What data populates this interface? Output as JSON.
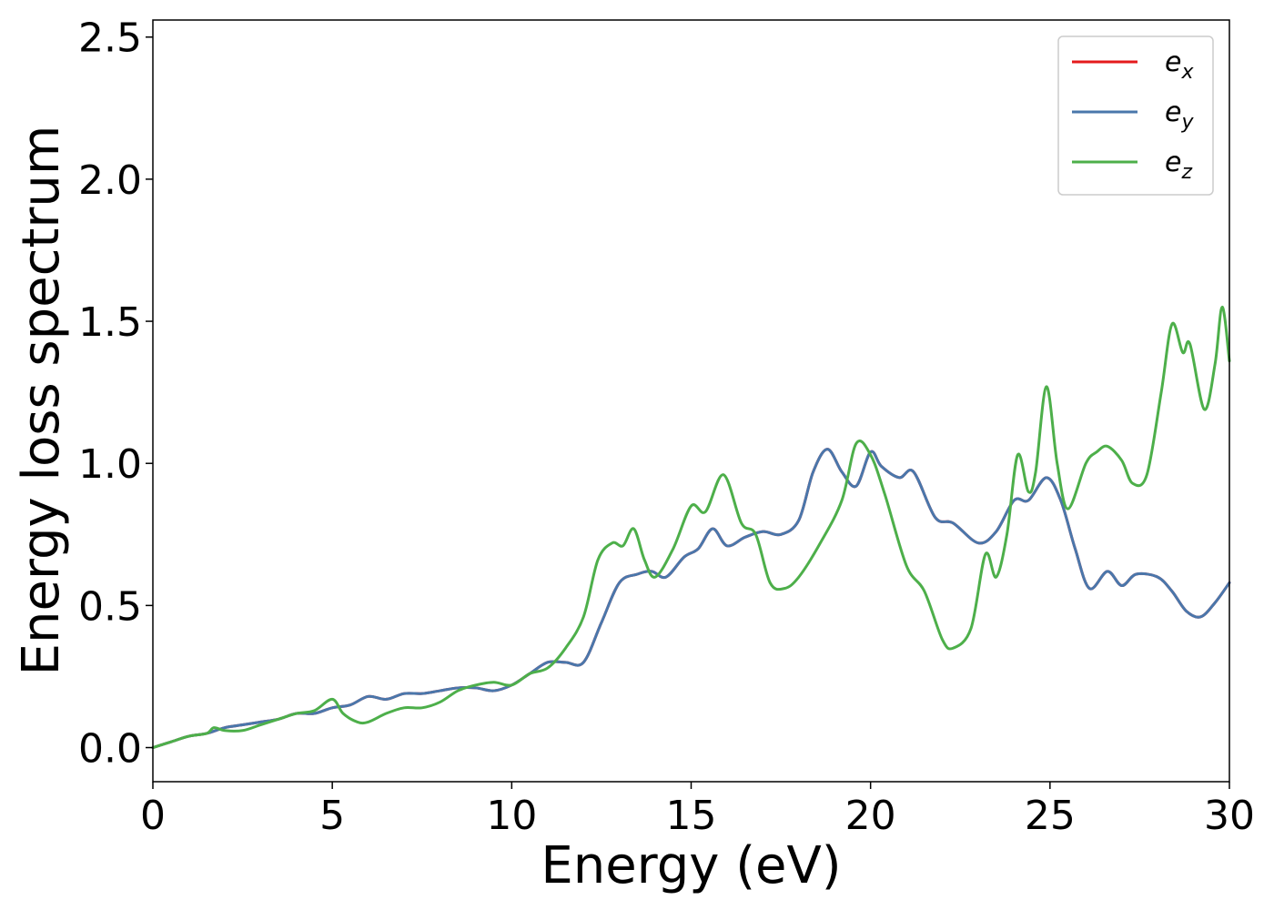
{
  "chart_data": {
    "type": "line",
    "title": "",
    "xlabel": "Energy (eV)",
    "ylabel": "Energy loss spectrum",
    "xlim": [
      0,
      30
    ],
    "ylim": [
      -0.12,
      2.56
    ],
    "xticks": [
      0,
      5,
      10,
      15,
      20,
      25,
      30
    ],
    "xtick_labels": [
      "0",
      "5",
      "10",
      "15",
      "20",
      "25",
      "30"
    ],
    "yticks": [
      0.0,
      0.5,
      1.0,
      1.5,
      2.0,
      2.5
    ],
    "ytick_labels": [
      "0.0",
      "0.5",
      "1.0",
      "1.5",
      "2.0",
      "2.5"
    ],
    "grid": false,
    "legend_position": "top-right",
    "colors": {
      "ex": "#e41a1c",
      "ey": "#4a77ab",
      "ez": "#4daf4a"
    },
    "series": [
      {
        "name": "e",
        "subscript": "x",
        "color": "#e41a1c",
        "x": [
          0,
          0.5,
          1,
          1.5,
          2,
          2.5,
          3,
          3.5,
          4,
          4.5,
          5,
          5.5,
          6,
          6.5,
          7,
          7.5,
          8,
          8.5,
          9,
          9.5,
          10,
          10.5,
          11,
          11.5,
          12,
          12.5,
          13,
          13.5,
          13.9,
          14.3,
          14.8,
          15.2,
          15.6,
          16,
          16.5,
          17,
          17.5,
          18,
          18.4,
          18.8,
          19.2,
          19.6,
          20,
          20.3,
          20.8,
          21.2,
          21.8,
          22.3,
          23,
          23.5,
          24,
          24.4,
          24.9,
          25.3,
          25.7,
          26.1,
          26.6,
          27,
          27.4,
          28,
          28.4,
          28.8,
          29.2,
          29.6,
          30
        ],
        "y": [
          0,
          0.02,
          0.04,
          0.05,
          0.07,
          0.08,
          0.09,
          0.1,
          0.12,
          0.12,
          0.14,
          0.15,
          0.18,
          0.17,
          0.19,
          0.19,
          0.2,
          0.21,
          0.21,
          0.2,
          0.22,
          0.26,
          0.3,
          0.3,
          0.3,
          0.44,
          0.58,
          0.61,
          0.62,
          0.6,
          0.67,
          0.7,
          0.77,
          0.71,
          0.74,
          0.76,
          0.75,
          0.8,
          0.97,
          1.05,
          0.97,
          0.92,
          1.04,
          0.99,
          0.95,
          0.97,
          0.81,
          0.79,
          0.72,
          0.76,
          0.87,
          0.87,
          0.95,
          0.87,
          0.7,
          0.56,
          0.62,
          0.57,
          0.61,
          0.6,
          0.55,
          0.48,
          0.46,
          0.51,
          0.58
        ]
      },
      {
        "name": "e",
        "subscript": "y",
        "color": "#4a77ab",
        "x": [
          0,
          0.5,
          1,
          1.5,
          2,
          2.5,
          3,
          3.5,
          4,
          4.5,
          5,
          5.5,
          6,
          6.5,
          7,
          7.5,
          8,
          8.5,
          9,
          9.5,
          10,
          10.5,
          11,
          11.5,
          12,
          12.5,
          13,
          13.5,
          13.9,
          14.3,
          14.8,
          15.2,
          15.6,
          16,
          16.5,
          17,
          17.5,
          18,
          18.4,
          18.8,
          19.2,
          19.6,
          20,
          20.3,
          20.8,
          21.2,
          21.8,
          22.3,
          23,
          23.5,
          24,
          24.4,
          24.9,
          25.3,
          25.7,
          26.1,
          26.6,
          27,
          27.4,
          28,
          28.4,
          28.8,
          29.2,
          29.6,
          30
        ],
        "y": [
          0,
          0.02,
          0.04,
          0.05,
          0.07,
          0.08,
          0.09,
          0.1,
          0.12,
          0.12,
          0.14,
          0.15,
          0.18,
          0.17,
          0.19,
          0.19,
          0.2,
          0.21,
          0.21,
          0.2,
          0.22,
          0.26,
          0.3,
          0.3,
          0.3,
          0.44,
          0.58,
          0.61,
          0.62,
          0.6,
          0.67,
          0.7,
          0.77,
          0.71,
          0.74,
          0.76,
          0.75,
          0.8,
          0.97,
          1.05,
          0.97,
          0.92,
          1.04,
          0.99,
          0.95,
          0.97,
          0.81,
          0.79,
          0.72,
          0.76,
          0.87,
          0.87,
          0.95,
          0.87,
          0.7,
          0.56,
          0.62,
          0.57,
          0.61,
          0.6,
          0.55,
          0.48,
          0.46,
          0.51,
          0.58
        ]
      },
      {
        "name": "e",
        "subscript": "z",
        "color": "#4daf4a",
        "x": [
          0,
          0.5,
          1,
          1.5,
          1.7,
          2,
          2.5,
          3,
          3.5,
          4,
          4.5,
          5,
          5.3,
          5.7,
          6,
          6.5,
          7,
          7.5,
          8,
          8.5,
          9,
          9.5,
          10,
          10.5,
          11,
          11.5,
          12,
          12.4,
          12.8,
          13.1,
          13.4,
          13.7,
          14,
          14.5,
          15,
          15.4,
          15.9,
          16.4,
          16.8,
          17.2,
          17.6,
          18,
          18.6,
          19.2,
          19.6,
          20,
          20.4,
          21,
          21.5,
          22,
          22.3,
          22.8,
          23.2,
          23.5,
          23.8,
          24.1,
          24.4,
          24.6,
          24.9,
          25.2,
          25.5,
          26,
          26.3,
          26.6,
          27,
          27.3,
          27.7,
          28.1,
          28.4,
          28.7,
          28.9,
          29.3,
          29.6,
          29.8,
          30
        ],
        "y": [
          0,
          0.02,
          0.04,
          0.05,
          0.07,
          0.06,
          0.06,
          0.08,
          0.1,
          0.12,
          0.13,
          0.17,
          0.12,
          0.09,
          0.09,
          0.12,
          0.14,
          0.14,
          0.16,
          0.2,
          0.22,
          0.23,
          0.22,
          0.26,
          0.28,
          0.35,
          0.46,
          0.66,
          0.72,
          0.71,
          0.77,
          0.66,
          0.6,
          0.7,
          0.85,
          0.83,
          0.96,
          0.79,
          0.75,
          0.58,
          0.56,
          0.6,
          0.72,
          0.87,
          1.07,
          1.03,
          0.89,
          0.64,
          0.55,
          0.38,
          0.35,
          0.42,
          0.68,
          0.6,
          0.75,
          1.03,
          0.9,
          0.97,
          1.27,
          1.0,
          0.84,
          1.0,
          1.04,
          1.06,
          1.01,
          0.93,
          0.96,
          1.25,
          1.49,
          1.39,
          1.42,
          1.19,
          1.35,
          1.55,
          1.36
        ]
      }
    ]
  }
}
